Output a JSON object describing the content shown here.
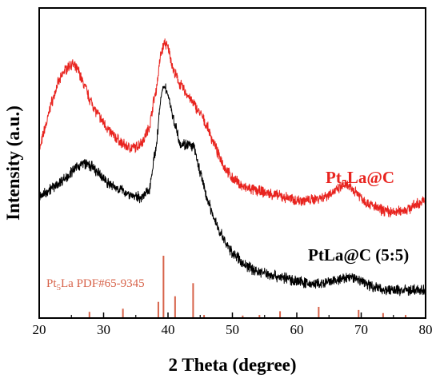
{
  "chart_data": {
    "type": "line",
    "xlabel": "2 Theta (degree)",
    "ylabel": "Intensity (a.u.)",
    "xlim": [
      20,
      80
    ],
    "xticks": [
      "20",
      "30",
      "40",
      "50",
      "60",
      "70",
      "80"
    ],
    "y_ticks_shown": false,
    "grid": false,
    "legend": "inline labels beside curves",
    "series": [
      {
        "name": "Pt5La@C",
        "label_main": "Pt",
        "label_sub": "5",
        "label_rest": "La@C",
        "color": "#e8241f",
        "points": [
          [
            20,
            0.54
          ],
          [
            21,
            0.62
          ],
          [
            22,
            0.7
          ],
          [
            23,
            0.76
          ],
          [
            24,
            0.8
          ],
          [
            25,
            0.82
          ],
          [
            26,
            0.8
          ],
          [
            27,
            0.75
          ],
          [
            28,
            0.7
          ],
          [
            29,
            0.66
          ],
          [
            30,
            0.63
          ],
          [
            31,
            0.6
          ],
          [
            32,
            0.58
          ],
          [
            33,
            0.56
          ],
          [
            34,
            0.55
          ],
          [
            35,
            0.55
          ],
          [
            36,
            0.57
          ],
          [
            37,
            0.61
          ],
          [
            38,
            0.72
          ],
          [
            39,
            0.86
          ],
          [
            39.5,
            0.89
          ],
          [
            40,
            0.87
          ],
          [
            41,
            0.79
          ],
          [
            42,
            0.75
          ],
          [
            43,
            0.72
          ],
          [
            44,
            0.69
          ],
          [
            45,
            0.66
          ],
          [
            46,
            0.62
          ],
          [
            47,
            0.57
          ],
          [
            48,
            0.52
          ],
          [
            49,
            0.48
          ],
          [
            50,
            0.45
          ],
          [
            52,
            0.42
          ],
          [
            54,
            0.41
          ],
          [
            56,
            0.4
          ],
          [
            58,
            0.39
          ],
          [
            60,
            0.38
          ],
          [
            62,
            0.38
          ],
          [
            64,
            0.39
          ],
          [
            66,
            0.41
          ],
          [
            67.5,
            0.43
          ],
          [
            69,
            0.41
          ],
          [
            71,
            0.37
          ],
          [
            73,
            0.35
          ],
          [
            75,
            0.34
          ],
          [
            77,
            0.35
          ],
          [
            79,
            0.37
          ],
          [
            80,
            0.38
          ]
        ]
      },
      {
        "name": "PtLa@C (5:5)",
        "label_text": "PtLa@C (5:5)",
        "color": "#000000",
        "points": [
          [
            20,
            0.39
          ],
          [
            22,
            0.42
          ],
          [
            24,
            0.45
          ],
          [
            25,
            0.47
          ],
          [
            26,
            0.49
          ],
          [
            27,
            0.5
          ],
          [
            28,
            0.49
          ],
          [
            29,
            0.47
          ],
          [
            30,
            0.45
          ],
          [
            31,
            0.43
          ],
          [
            32,
            0.42
          ],
          [
            33,
            0.41
          ],
          [
            34,
            0.4
          ],
          [
            35,
            0.39
          ],
          [
            36,
            0.39
          ],
          [
            37,
            0.41
          ],
          [
            38,
            0.53
          ],
          [
            39,
            0.72
          ],
          [
            39.5,
            0.75
          ],
          [
            40,
            0.72
          ],
          [
            41,
            0.63
          ],
          [
            42,
            0.56
          ],
          [
            43,
            0.56
          ],
          [
            44,
            0.55
          ],
          [
            45,
            0.47
          ],
          [
            46,
            0.39
          ],
          [
            47,
            0.33
          ],
          [
            48,
            0.28
          ],
          [
            49,
            0.24
          ],
          [
            50,
            0.21
          ],
          [
            52,
            0.17
          ],
          [
            54,
            0.15
          ],
          [
            56,
            0.14
          ],
          [
            58,
            0.13
          ],
          [
            60,
            0.12
          ],
          [
            62,
            0.11
          ],
          [
            64,
            0.11
          ],
          [
            66,
            0.12
          ],
          [
            68,
            0.13
          ],
          [
            69,
            0.13
          ],
          [
            70,
            0.12
          ],
          [
            72,
            0.1
          ],
          [
            74,
            0.09
          ],
          [
            76,
            0.09
          ],
          [
            78,
            0.09
          ],
          [
            80,
            0.09
          ]
        ]
      }
    ],
    "reference": {
      "label_main": "Pt",
      "label_sub": "5",
      "label_rest": "La PDF#65-9345",
      "color": "#d7634a",
      "sticks": [
        [
          27.8,
          0.1
        ],
        [
          33.0,
          0.15
        ],
        [
          38.5,
          0.26
        ],
        [
          39.3,
          1.0
        ],
        [
          41.1,
          0.35
        ],
        [
          43.9,
          0.56
        ],
        [
          45.6,
          0.05
        ],
        [
          51.6,
          0.04
        ],
        [
          54.2,
          0.05
        ],
        [
          57.4,
          0.11
        ],
        [
          63.4,
          0.18
        ],
        [
          69.6,
          0.13
        ],
        [
          73.4,
          0.08
        ],
        [
          76.9,
          0.05
        ]
      ]
    }
  }
}
